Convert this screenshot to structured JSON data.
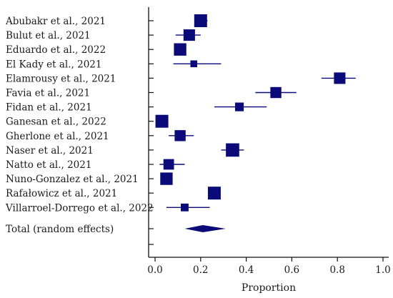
{
  "chart_data": {
    "type": "forest",
    "xlabel": "Proportion",
    "xlim": [
      0,
      1
    ],
    "xticks": [
      0.0,
      0.2,
      0.4,
      0.6,
      0.8,
      1.0
    ],
    "xtick_labels": [
      "0.0",
      "0.2",
      "0.4",
      "0.6",
      "0.8",
      "1.0"
    ],
    "marker_color": "#0a0a78",
    "studies": [
      {
        "label": "Abubakr et al., 2021",
        "estimate": 0.2,
        "lower": 0.18,
        "upper": 0.23,
        "weight": 1.0
      },
      {
        "label": "Bulut et al., 2021",
        "estimate": 0.15,
        "lower": 0.09,
        "upper": 0.2,
        "weight": 0.85
      },
      {
        "label": "Eduardo et al., 2022",
        "estimate": 0.11,
        "lower": 0.09,
        "upper": 0.13,
        "weight": 0.95
      },
      {
        "label": "El Kady et al., 2021",
        "estimate": 0.17,
        "lower": 0.08,
        "upper": 0.29,
        "weight": 0.35
      },
      {
        "label": "Elamrousy et al., 2021",
        "estimate": 0.81,
        "lower": 0.73,
        "upper": 0.88,
        "weight": 0.85
      },
      {
        "label": "Favia et al., 2021",
        "estimate": 0.53,
        "lower": 0.44,
        "upper": 0.62,
        "weight": 0.8
      },
      {
        "label": "Fidan et al., 2021",
        "estimate": 0.37,
        "lower": 0.26,
        "upper": 0.49,
        "weight": 0.55
      },
      {
        "label": "Ganesan et al., 2022",
        "estimate": 0.03,
        "lower": 0.01,
        "upper": 0.05,
        "weight": 1.0
      },
      {
        "label": "Gherlone et al., 2021",
        "estimate": 0.11,
        "lower": 0.06,
        "upper": 0.17,
        "weight": 0.8
      },
      {
        "label": "Naser et al., 2021",
        "estimate": 0.34,
        "lower": 0.29,
        "upper": 0.39,
        "weight": 1.05
      },
      {
        "label": "Natto et al., 2021",
        "estimate": 0.06,
        "lower": 0.02,
        "upper": 0.13,
        "weight": 0.75
      },
      {
        "label": "Nuno-Gonzalez et al., 2021",
        "estimate": 0.05,
        "lower": 0.03,
        "upper": 0.07,
        "weight": 0.95
      },
      {
        "label": "Rafałowicz et al., 2021",
        "estimate": 0.26,
        "lower": 0.24,
        "upper": 0.28,
        "weight": 1.0
      },
      {
        "label": "Villarroel-Dorrego et al., 2022",
        "estimate": 0.13,
        "lower": 0.05,
        "upper": 0.24,
        "weight": 0.45
      }
    ],
    "pooled": {
      "label": "Total (random effects)",
      "estimate": 0.21,
      "lower": 0.13,
      "upper": 0.31
    }
  }
}
